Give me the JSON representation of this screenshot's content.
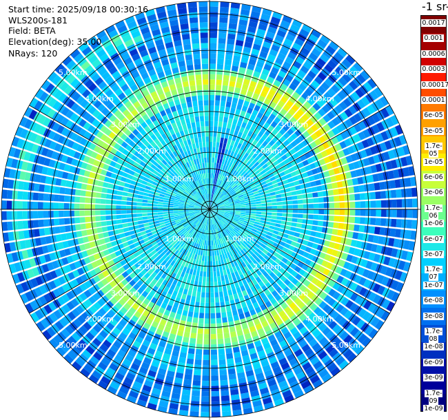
{
  "header": {
    "start_time": "Start time: 2025/09/18 00:30:16",
    "instrument": "WLS200s-181",
    "field": "Field: BETA",
    "elevation": "Elevation(deg): 35.00",
    "nrays": "NRays: 120"
  },
  "colorbar": {
    "title": "-1 sr-",
    "labels": [
      "0.0017",
      "0.001",
      "0.0006",
      "0.0003",
      "0.00017",
      "0.0001",
      "6e-05",
      "3e-05",
      "1.7e-05",
      "1e-05",
      "6e-06",
      "3e-06",
      "1.7e-06",
      "1e-06",
      "6e-07",
      "3e-07",
      "1.7e-07",
      "1e-07",
      "6e-08",
      "3e-08",
      "1.7e-08",
      "1e-08",
      "6e-09",
      "3e-09",
      "1.7e-09",
      "1e-09"
    ],
    "colors": [
      "#800000",
      "#a50000",
      "#d10000",
      "#ff1a00",
      "#ff4d00",
      "#ff7a00",
      "#ffa000",
      "#ffc800",
      "#ffee00",
      "#c8ff3a",
      "#9aff64",
      "#6cff8e",
      "#3cffbc",
      "#1ee8e8",
      "#00d0ff",
      "#00b0ff",
      "#0090ff",
      "#0070f0",
      "#0050d8",
      "#0030c0",
      "#0010a8",
      "#00009a",
      "#000080"
    ]
  },
  "chart_data": {
    "type": "heatmap",
    "projection": "polar-ppi",
    "field": "BETA",
    "elevation_deg": 35.0,
    "n_rays": 120,
    "range_ring_labels_km": [
      "1.00km",
      "2.00km",
      "3.00km",
      "4.00km",
      "5.00km"
    ],
    "max_range_km": 5.1,
    "scale": "log10",
    "value_range": [
      1e-09,
      0.0017
    ],
    "features": [
      {
        "description": "high-backscatter ring",
        "range_km": [
          2.9,
          3.4
        ],
        "level": "1e-06 to 1e-05"
      },
      {
        "description": "narrow high-backscatter streak",
        "azimuth_deg": 12,
        "range_km": [
          0,
          1.8
        ],
        "level": "around 3e-08"
      },
      {
        "description": "background",
        "level": "3e-08 to 1e-07"
      }
    ]
  }
}
